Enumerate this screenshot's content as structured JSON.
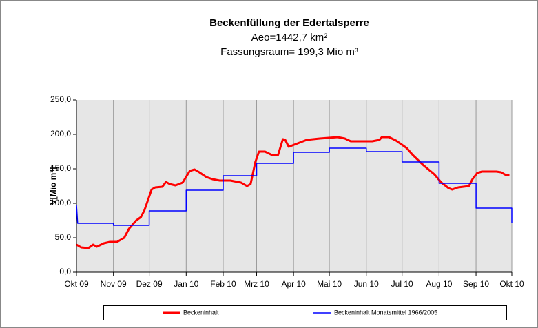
{
  "chart_data": {
    "type": "line",
    "title": "Beckenfüllung der Edertalsperre",
    "subtitle": [
      "Aeo=1442,7 km²",
      "Fassungsraum= 199,3 Mio m³"
    ],
    "y_label": "V[Mio m³]",
    "xlim": [
      0,
      365
    ],
    "xticks": [
      {
        "value": 0,
        "label": "Okt 09"
      },
      {
        "value": 31,
        "label": "Nov 09"
      },
      {
        "value": 61,
        "label": "Dez 09"
      },
      {
        "value": 92,
        "label": "Jan 10"
      },
      {
        "value": 123,
        "label": "Feb 10"
      },
      {
        "value": 151,
        "label": "Mrz 10"
      },
      {
        "value": 182,
        "label": "Apr 10"
      },
      {
        "value": 212,
        "label": "Mai 10"
      },
      {
        "value": 243,
        "label": "Jun 10"
      },
      {
        "value": 273,
        "label": "Jul 10"
      },
      {
        "value": 304,
        "label": "Aug 10"
      },
      {
        "value": 335,
        "label": "Sep 10"
      },
      {
        "value": 365,
        "label": "Okt 10"
      }
    ],
    "ylim": [
      0,
      250
    ],
    "yticks": [
      {
        "value": 0,
        "label": "0,0"
      },
      {
        "value": 50,
        "label": "50,0"
      },
      {
        "value": 100,
        "label": "100,0"
      },
      {
        "value": 150,
        "label": "150,0"
      },
      {
        "value": 200,
        "label": "200,0"
      },
      {
        "value": 250,
        "label": "250,0"
      }
    ],
    "grid": "x",
    "legend": "bottom",
    "series": [
      {
        "name": "Beckeninhalt",
        "color": "#ff0000",
        "width": 3,
        "x": [
          0,
          4,
          10,
          14,
          17,
          23,
          28,
          34,
          40,
          44,
          50,
          54,
          57,
          60,
          63,
          66,
          72,
          75,
          78,
          83,
          89,
          95,
          99,
          103,
          109,
          114,
          120,
          129,
          138,
          143,
          146,
          150,
          153,
          158,
          164,
          169,
          173,
          175,
          178,
          184,
          193,
          204,
          219,
          225,
          230,
          248,
          254,
          256,
          262,
          268,
          277,
          282,
          291,
          300,
          306,
          312,
          315,
          320,
          329,
          332,
          336,
          340,
          352,
          356,
          360,
          363
        ],
        "values": [
          40,
          36,
          35,
          40,
          37,
          42,
          44,
          44,
          50,
          63,
          75,
          80,
          90,
          105,
          120,
          123,
          124,
          131,
          128,
          126,
          130,
          147,
          149,
          145,
          138,
          135,
          133,
          133,
          130,
          125,
          128,
          160,
          175,
          175,
          170,
          170,
          193,
          192,
          182,
          186,
          192,
          194,
          196,
          194,
          190,
          190,
          192,
          196,
          196,
          191,
          180,
          170,
          155,
          142,
          130,
          122,
          120,
          123,
          125,
          135,
          144,
          146,
          146,
          145,
          141,
          141
        ]
      },
      {
        "name": "Beckeninhalt Monatsmittel 1966/2005",
        "color": "#0000ff",
        "width": 1.5,
        "x": [
          0,
          1,
          31,
          31,
          61,
          61,
          92,
          92,
          123,
          123,
          151,
          151,
          182,
          182,
          212,
          212,
          243,
          243,
          273,
          273,
          304,
          304,
          335,
          335,
          365,
          365
        ],
        "values": [
          98,
          71,
          71,
          68,
          68,
          89,
          89,
          119,
          119,
          140,
          140,
          158,
          158,
          174,
          174,
          180,
          180,
          175,
          175,
          160,
          160,
          129,
          129,
          93,
          93,
          71
        ]
      }
    ]
  }
}
